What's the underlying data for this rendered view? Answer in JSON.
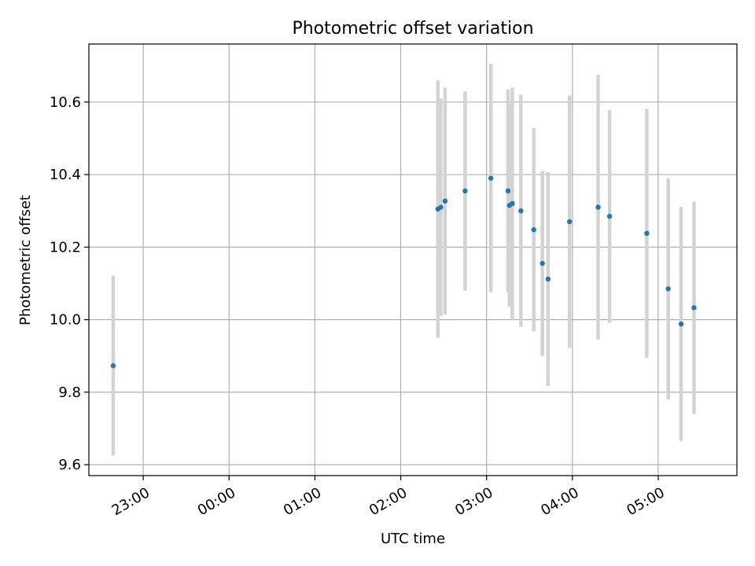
{
  "chart_data": {
    "type": "scatter",
    "title": "Photometric offset variation",
    "xlabel": "UTC time",
    "ylabel": "Photometric offset",
    "x_tick_labels": [
      "23:00",
      "00:00",
      "01:00",
      "02:00",
      "03:00",
      "04:00",
      "05:00"
    ],
    "x_tick_values": [
      "23:00",
      "00:00",
      "01:00",
      "02:00",
      "03:00",
      "04:00",
      "05:00"
    ],
    "x_axis": "time",
    "xlim": [
      "22:22",
      "05:55"
    ],
    "ylim": [
      9.57,
      10.76
    ],
    "y_ticks": [
      9.6,
      9.8,
      10.0,
      10.2,
      10.4,
      10.6
    ],
    "grid": true,
    "colors": {
      "marker": "#1f77b4",
      "errorbar": "#d3d3d3",
      "grid": "#b0b0b0"
    },
    "points": [
      {
        "x": "22:39",
        "y": 9.873,
        "yerr": 0.248
      },
      {
        "x": "02:26",
        "y": 10.305,
        "yerr": 0.355
      },
      {
        "x": "02:28",
        "y": 10.31,
        "yerr": 0.3
      },
      {
        "x": "02:31",
        "y": 10.327,
        "yerr": 0.313
      },
      {
        "x": "02:45",
        "y": 10.355,
        "yerr": 0.275
      },
      {
        "x": "03:03",
        "y": 10.39,
        "yerr": 0.315
      },
      {
        "x": "03:15",
        "y": 10.355,
        "yerr": 0.28
      },
      {
        "x": "03:16",
        "y": 10.315,
        "yerr": 0.28
      },
      {
        "x": "03:18",
        "y": 10.32,
        "yerr": 0.32
      },
      {
        "x": "03:24",
        "y": 10.3,
        "yerr": 0.32
      },
      {
        "x": "03:33",
        "y": 10.248,
        "yerr": 0.28
      },
      {
        "x": "03:39",
        "y": 10.155,
        "yerr": 0.255
      },
      {
        "x": "03:43",
        "y": 10.112,
        "yerr": 0.295
      },
      {
        "x": "03:58",
        "y": 10.27,
        "yerr": 0.348
      },
      {
        "x": "04:18",
        "y": 10.31,
        "yerr": 0.365
      },
      {
        "x": "04:26",
        "y": 10.285,
        "yerr": 0.293
      },
      {
        "x": "04:52",
        "y": 10.238,
        "yerr": 0.343
      },
      {
        "x": "05:07",
        "y": 10.085,
        "yerr": 0.305
      },
      {
        "x": "05:16",
        "y": 9.988,
        "yerr": 0.323
      },
      {
        "x": "05:25",
        "y": 10.033,
        "yerr": 0.293
      }
    ]
  }
}
